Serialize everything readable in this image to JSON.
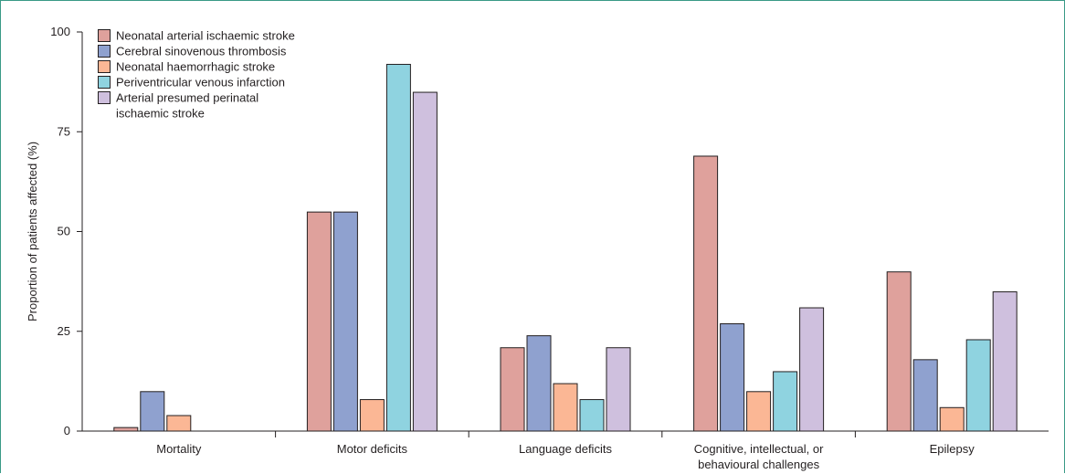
{
  "chart_data": {
    "type": "bar",
    "ylabel": "Proportion of patients affected (%)",
    "ylim": [
      0,
      100
    ],
    "yticks": [
      0,
      25,
      50,
      75,
      100
    ],
    "categories": [
      [
        "Mortality"
      ],
      [
        "Motor deficits"
      ],
      [
        "Language deficits"
      ],
      [
        "Cognitive, intellectual, or",
        "behavioural challenges"
      ],
      [
        "Epilepsy"
      ]
    ],
    "series": [
      {
        "name": [
          "Neonatal arterial ischaemic stroke"
        ],
        "color": "#dfa19c",
        "values": [
          1,
          55,
          21,
          69,
          40
        ]
      },
      {
        "name": [
          "Cerebral sinovenous thrombosis"
        ],
        "color": "#8fa1cf",
        "values": [
          10,
          55,
          24,
          27,
          18
        ]
      },
      {
        "name": [
          "Neonatal haemorrhagic stroke"
        ],
        "color": "#fbb795",
        "values": [
          4,
          8,
          12,
          10,
          6
        ]
      },
      {
        "name": [
          "Periventricular venous infarction"
        ],
        "color": "#8fd3e0",
        "values": [
          0,
          92,
          8,
          15,
          23
        ]
      },
      {
        "name": [
          "Arterial presumed perinatal",
          "ischaemic stroke"
        ],
        "color": "#cfc0de",
        "values": [
          0,
          85,
          21,
          31,
          35
        ]
      }
    ],
    "legend": "top-left",
    "grid": false
  }
}
